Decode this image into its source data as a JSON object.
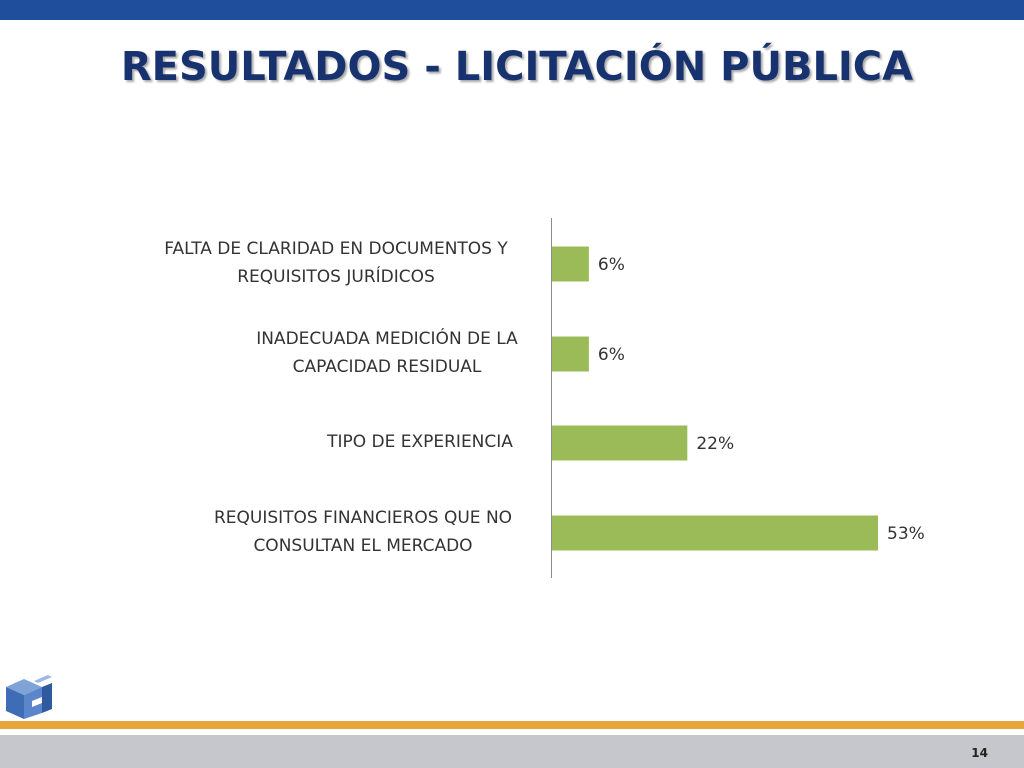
{
  "slide": {
    "title": "RESULTADOS - LICITACIÓN PÚBLICA",
    "page_number": "14",
    "colors": {
      "top_bar": "#1f4e9c",
      "title": "#17326e",
      "bar_fill": "#9bbb59",
      "orange_stripe": "#e8a33a",
      "bottom_bar": "#c5c7cc"
    },
    "logo_icon": "cube-logo-icon"
  },
  "chart_data": {
    "type": "bar",
    "orientation": "horizontal",
    "categories": [
      [
        "FALTA DE CLARIDAD EN DOCUMENTOS Y",
        "REQUISITOS JURÍDICOS"
      ],
      [
        "INADECUADA MEDICIÓN DE LA",
        "CAPACIDAD RESIDUAL"
      ],
      [
        "TIPO DE EXPERIENCIA"
      ],
      [
        "REQUISITOS FINANCIEROS QUE NO",
        "CONSULTAN EL MERCADO"
      ]
    ],
    "values": [
      6,
      6,
      22,
      53
    ],
    "data_labels": [
      "6%",
      "6%",
      "22%",
      "53%"
    ],
    "unit": "%",
    "xlim": [
      0,
      53
    ],
    "grid": false,
    "legend": "none"
  }
}
